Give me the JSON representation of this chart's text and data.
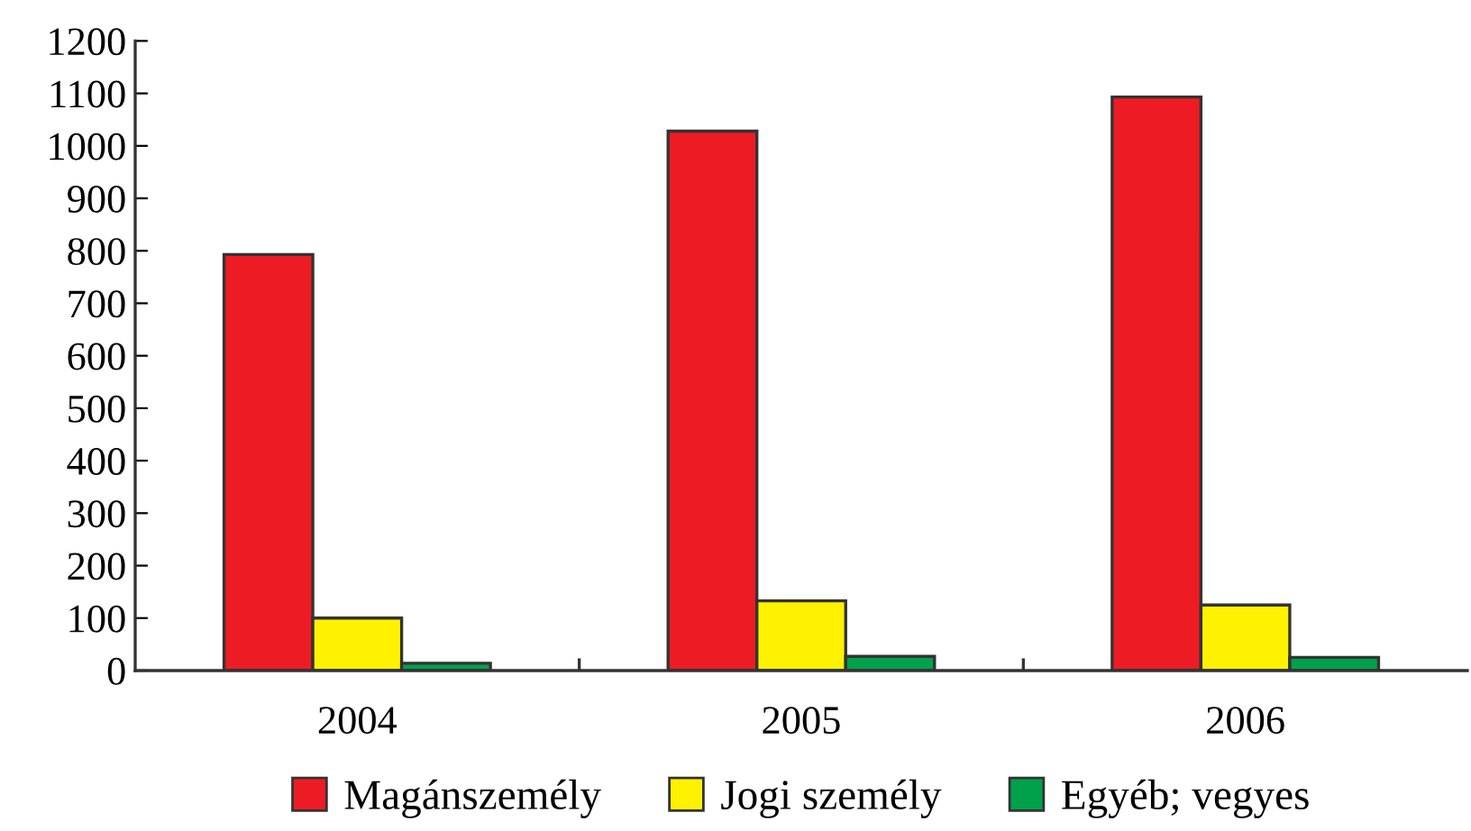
{
  "chart_data": {
    "type": "bar",
    "categories": [
      "2004",
      "2005",
      "2006"
    ],
    "series": [
      {
        "name": "Magánszemély",
        "color": "#ed1c24",
        "values": [
          793,
          1028,
          1093
        ]
      },
      {
        "name": "Jogi személy",
        "color": "#fff200",
        "values": [
          100,
          133,
          125
        ]
      },
      {
        "name": "Egyéb; vegyes",
        "color": "#00a14b",
        "values": [
          14,
          27,
          25
        ]
      }
    ],
    "ylim": [
      0,
      1200
    ],
    "yticks": [
      0,
      100,
      200,
      300,
      400,
      500,
      600,
      700,
      800,
      900,
      1000,
      1100,
      1200
    ],
    "grid": false,
    "legend": "bottom"
  }
}
